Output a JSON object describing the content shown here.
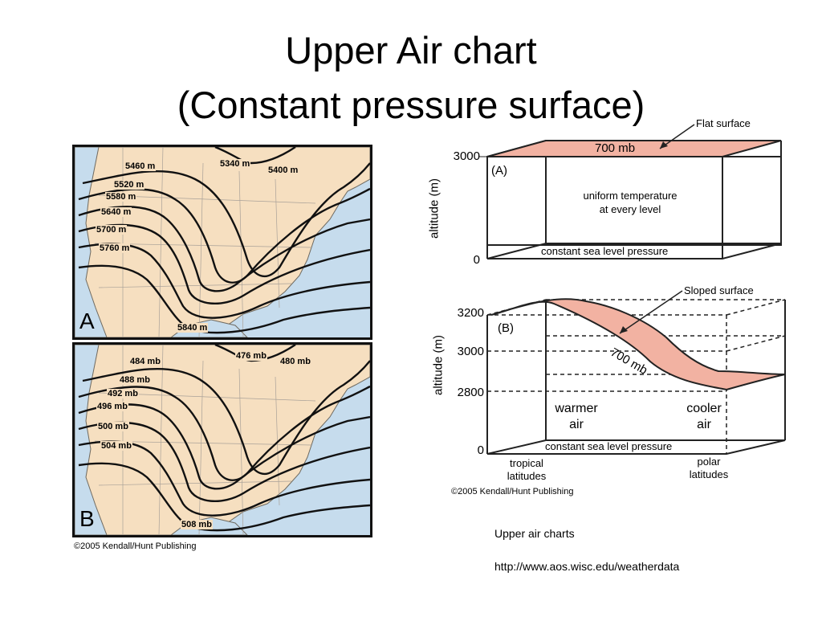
{
  "slide": {
    "title_line1": "Upper Air chart",
    "title_line2": "(Constant pressure surface)"
  },
  "map_a": {
    "letter": "A",
    "contours": [
      "5460 m",
      "5340 m",
      "5400 m",
      "5520 m",
      "5580 m",
      "5640 m",
      "5700 m",
      "5760 m",
      "5840 m"
    ]
  },
  "map_b": {
    "letter": "B",
    "contours": [
      "484 mb",
      "476 mb",
      "480 mb",
      "488 mb",
      "492 mb",
      "496 mb",
      "500 mb",
      "504 mb",
      "508 mb"
    ]
  },
  "maps_credit": "©2005 Kendall/Hunt Publishing",
  "diagram_a": {
    "panel_label": "(A)",
    "callout": "Flat surface",
    "surface_label": "700 mb",
    "y_ticks": [
      "3000",
      "0"
    ],
    "y_label": "altitude (m)",
    "note_line1": "uniform temperature",
    "note_line2": "at every level",
    "base_label": "constant sea level pressure"
  },
  "diagram_b": {
    "panel_label": "(B)",
    "callout": "Sloped surface",
    "surface_label": "700 mb",
    "y_ticks": [
      "3200",
      "3000",
      "2800",
      "0"
    ],
    "y_label": "altitude (m)",
    "warm_line1": "warmer",
    "warm_line2": "air",
    "cool_line1": "cooler",
    "cool_line2": "air",
    "base_label": "constant sea level pressure",
    "left_lat_line1": "tropical",
    "left_lat_line2": "latitudes",
    "right_lat_line1": "polar",
    "right_lat_line2": "latitudes"
  },
  "diagram_credit": "©2005 Kendall/Hunt Publishing",
  "caption": {
    "line1": "Upper air charts",
    "line2": "http://www.aos.wisc.edu/weatherdata"
  },
  "colors": {
    "land": "#f6dfc0",
    "water": "#c6dced",
    "surface_fill": "#f2b2a2"
  }
}
